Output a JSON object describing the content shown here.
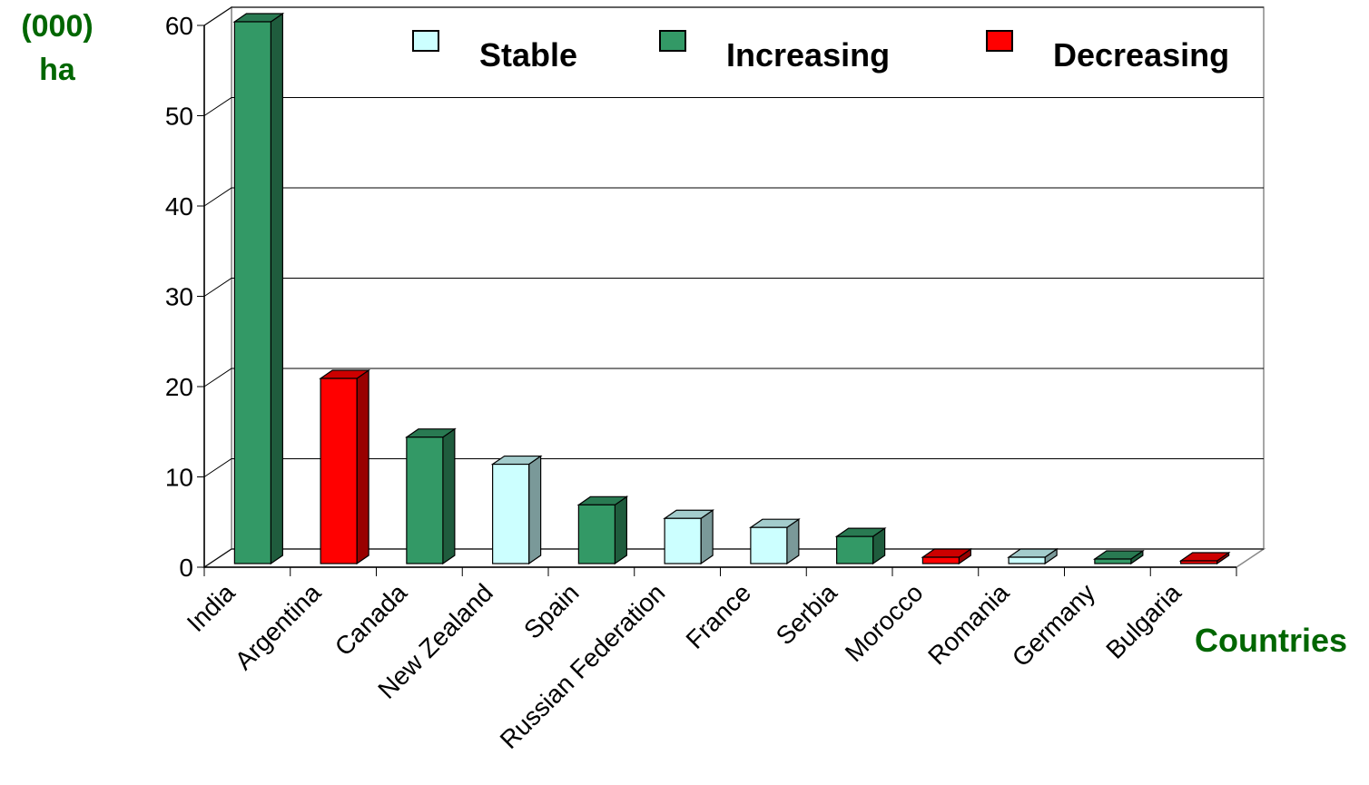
{
  "chart_data": {
    "type": "bar3d",
    "y_label_lines": [
      "(000)",
      "ha"
    ],
    "x_label": "Countries",
    "categories": [
      "India",
      "Argentina",
      "Canada",
      "New Zealand",
      "Spain",
      "Russian Federation",
      "France",
      "Serbia",
      "Morocco",
      "Romania",
      "Germany",
      "Bulgaria"
    ],
    "series": [
      {
        "name": "Stable",
        "color": "#ccffff",
        "values": [
          null,
          null,
          null,
          11,
          null,
          5,
          4,
          null,
          null,
          0.7,
          null,
          null
        ]
      },
      {
        "name": "Increasing",
        "color": "#339966",
        "values": [
          60,
          null,
          14,
          null,
          6.5,
          null,
          null,
          3,
          null,
          null,
          0.5,
          null
        ]
      },
      {
        "name": "Decreasing",
        "color": "#ff0000",
        "values": [
          null,
          20.5,
          null,
          null,
          null,
          null,
          null,
          null,
          0.7,
          null,
          null,
          0.3
        ]
      }
    ],
    "ylim": [
      0,
      60
    ],
    "yticks": [
      0,
      10,
      20,
      30,
      40,
      50,
      60
    ],
    "grid": true
  }
}
